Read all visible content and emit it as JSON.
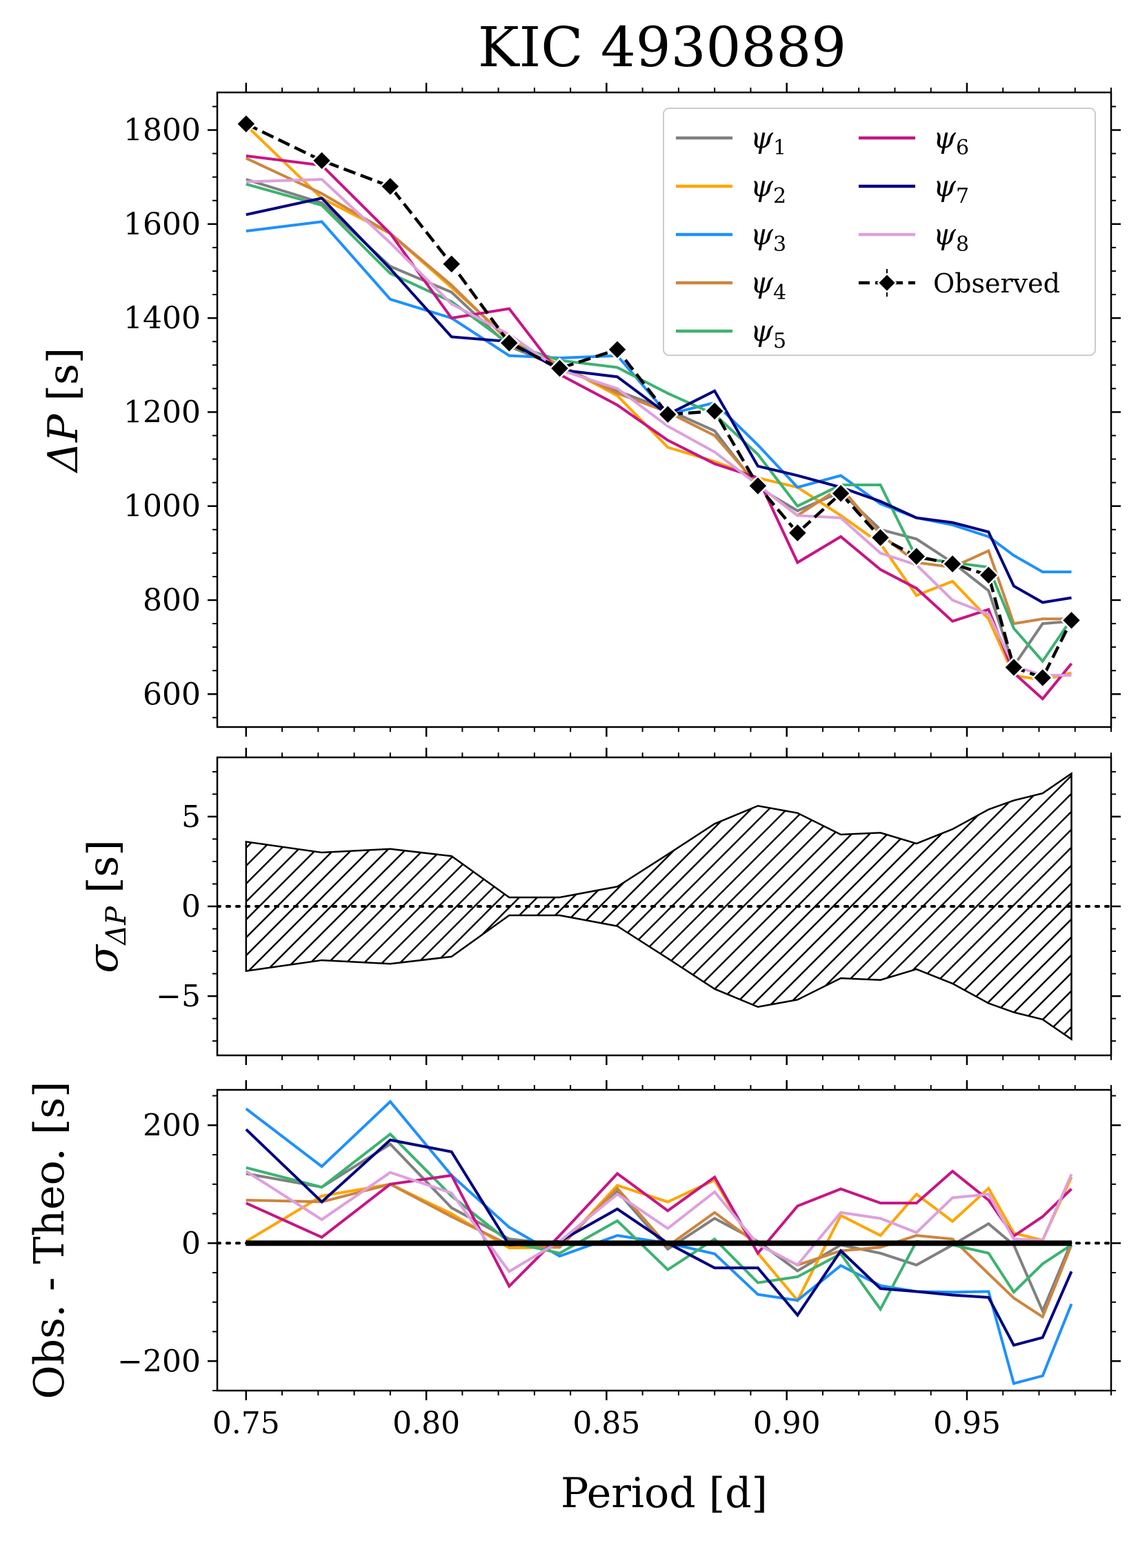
{
  "title": "KIC 4930889",
  "xlabel": "Period [d]",
  "panels": {
    "top": {
      "ylabel_main": "ΔP",
      "ylabel_unit": " [s]"
    },
    "mid": {
      "ylabel_main": "σ",
      "ylabel_sub": "ΔP",
      "ylabel_unit": " [s]"
    },
    "bot": {
      "ylabel": "Obs. - Theo. [s]"
    }
  },
  "legend": {
    "psi_prefix": "ψ",
    "observed_label": "Observed"
  },
  "chart_data": [
    {
      "type": "line",
      "panel": "top",
      "xlim": [
        0.742,
        0.99
      ],
      "ylim": [
        530,
        1880
      ],
      "x_ticks": [
        0.75,
        0.8,
        0.85,
        0.9,
        0.95
      ],
      "y_ticks": [
        600,
        800,
        1000,
        1200,
        1400,
        1600,
        1800
      ],
      "x": [
        0.75,
        0.771,
        0.79,
        0.807,
        0.823,
        0.837,
        0.853,
        0.867,
        0.88,
        0.892,
        0.903,
        0.915,
        0.926,
        0.936,
        0.946,
        0.956,
        0.963,
        0.971,
        0.979
      ],
      "legend_placement": "upper-right, 2 columns",
      "series": [
        {
          "name": "ψ",
          "sub": "1",
          "color": "#808080",
          "values": [
            1695,
            1645,
            1510,
            1455,
            1340,
            1295,
            1245,
            1205,
            1160,
            1040,
            990,
            1030,
            950,
            930,
            880,
            820,
            660,
            750,
            755
          ]
        },
        {
          "name": "ψ",
          "sub": "2",
          "color": "#ffa500",
          "values": [
            1810,
            1655,
            1580,
            1465,
            1355,
            1300,
            1235,
            1125,
            1095,
            1060,
            1040,
            980,
            920,
            810,
            840,
            760,
            640,
            630,
            645
          ]
        },
        {
          "name": "ψ",
          "sub": "3",
          "color": "#1e90ff",
          "values": [
            1585,
            1605,
            1440,
            1400,
            1320,
            1315,
            1320,
            1195,
            1220,
            1130,
            1040,
            1065,
            1005,
            975,
            960,
            935,
            895,
            860,
            860
          ]
        },
        {
          "name": "ψ",
          "sub": "4",
          "color": "#cd853f",
          "values": [
            1740,
            1665,
            1580,
            1470,
            1350,
            1300,
            1240,
            1200,
            1150,
            1045,
            980,
            1040,
            940,
            880,
            870,
            905,
            750,
            760,
            760
          ]
        },
        {
          "name": "ψ",
          "sub": "5",
          "color": "#3cb371",
          "values": [
            1685,
            1640,
            1495,
            1435,
            1345,
            1310,
            1295,
            1240,
            1195,
            1110,
            1000,
            1045,
            1045,
            890,
            880,
            870,
            740,
            670,
            760
          ]
        },
        {
          "name": "ψ",
          "sub": "6",
          "color": "#c71585",
          "values": [
            1745,
            1725,
            1580,
            1400,
            1420,
            1280,
            1215,
            1140,
            1090,
            1060,
            880,
            935,
            865,
            825,
            755,
            780,
            645,
            590,
            665
          ]
        },
        {
          "name": "ψ",
          "sub": "7",
          "color": "#000080",
          "values": [
            1620,
            1655,
            1505,
            1360,
            1350,
            1290,
            1275,
            1195,
            1245,
            1085,
            1065,
            1040,
            1010,
            975,
            965,
            945,
            830,
            795,
            805
          ]
        },
        {
          "name": "ψ",
          "sub": "8",
          "color": "#dda0dd",
          "values": [
            1690,
            1695,
            1560,
            1430,
            1365,
            1290,
            1250,
            1170,
            1115,
            1045,
            980,
            975,
            900,
            875,
            800,
            770,
            660,
            640,
            640
          ]
        },
        {
          "name": "Observed",
          "color": "#000000",
          "style": "dashed-diamond",
          "values": [
            1813,
            1735,
            1680,
            1515,
            1347,
            1293,
            1333,
            1195,
            1202,
            1043,
            943,
            1027,
            933,
            893,
            877,
            853,
            657,
            635,
            757
          ]
        }
      ]
    },
    {
      "type": "area",
      "panel": "mid",
      "xlim": [
        0.742,
        0.99
      ],
      "ylim": [
        -8.3,
        8.3
      ],
      "y_ticks": [
        -5,
        0,
        5
      ],
      "reference_line": 0,
      "fill": "hatched",
      "x": [
        0.75,
        0.771,
        0.79,
        0.807,
        0.823,
        0.837,
        0.853,
        0.867,
        0.88,
        0.892,
        0.903,
        0.915,
        0.926,
        0.936,
        0.946,
        0.956,
        0.963,
        0.971,
        0.979
      ],
      "values": [
        3.6,
        3.0,
        3.2,
        2.8,
        0.5,
        0.5,
        1.1,
        2.9,
        4.6,
        5.6,
        5.2,
        4.0,
        4.1,
        3.5,
        4.3,
        5.4,
        5.9,
        6.3,
        7.4
      ]
    },
    {
      "type": "line",
      "panel": "bot",
      "xlim": [
        0.742,
        0.99
      ],
      "ylim": [
        -250,
        260
      ],
      "y_ticks": [
        -200,
        0,
        200
      ],
      "reference_line": 0,
      "x": [
        0.75,
        0.771,
        0.79,
        0.807,
        0.823,
        0.837,
        0.853,
        0.867,
        0.88,
        0.892,
        0.903,
        0.915,
        0.926,
        0.936,
        0.946,
        0.956,
        0.963,
        0.971,
        0.979
      ],
      "series": [
        {
          "color": "#808080",
          "values": [
            118,
            95,
            168,
            60,
            7,
            -2,
            88,
            -10,
            42,
            3,
            -47,
            -3,
            -17,
            -37,
            -3,
            33,
            -3,
            -115,
            2
          ]
        },
        {
          "color": "#ffa500",
          "values": [
            3,
            80,
            100,
            50,
            -8,
            -7,
            98,
            70,
            107,
            -17,
            -97,
            47,
            13,
            83,
            37,
            93,
            17,
            5,
            112
          ]
        },
        {
          "color": "#1e90ff",
          "values": [
            228,
            130,
            240,
            115,
            27,
            -22,
            13,
            0,
            -18,
            -87,
            -97,
            -38,
            -72,
            -82,
            -83,
            -82,
            -238,
            -225,
            -103
          ]
        },
        {
          "color": "#cd853f",
          "values": [
            73,
            70,
            100,
            45,
            -3,
            -7,
            93,
            -5,
            52,
            -2,
            -37,
            -13,
            -7,
            13,
            7,
            -52,
            -93,
            -125,
            -3
          ]
        },
        {
          "color": "#3cb371",
          "values": [
            128,
            95,
            185,
            80,
            2,
            -17,
            38,
            -45,
            7,
            -67,
            -57,
            -18,
            -112,
            3,
            -3,
            -17,
            -83,
            -35,
            -3
          ]
        },
        {
          "color": "#c71585",
          "values": [
            68,
            10,
            100,
            115,
            -73,
            13,
            118,
            55,
            112,
            -17,
            63,
            92,
            68,
            68,
            122,
            73,
            12,
            45,
            92
          ]
        },
        {
          "color": "#000080",
          "values": [
            193,
            70,
            175,
            155,
            -3,
            3,
            58,
            0,
            -42,
            -42,
            -122,
            -13,
            -77,
            -82,
            -88,
            -92,
            -173,
            -160,
            -48
          ]
        },
        {
          "color": "#dda0dd",
          "values": [
            122,
            40,
            120,
            85,
            -48,
            3,
            83,
            25,
            87,
            -2,
            -37,
            52,
            42,
            18,
            77,
            83,
            7,
            5,
            117
          ]
        },
        {
          "color": "#000000",
          "style": "band",
          "values": [
            0,
            0,
            0,
            0,
            0,
            0,
            0,
            0,
            0,
            0,
            0,
            0,
            0,
            0,
            0,
            0,
            0,
            0,
            0
          ]
        }
      ]
    }
  ]
}
